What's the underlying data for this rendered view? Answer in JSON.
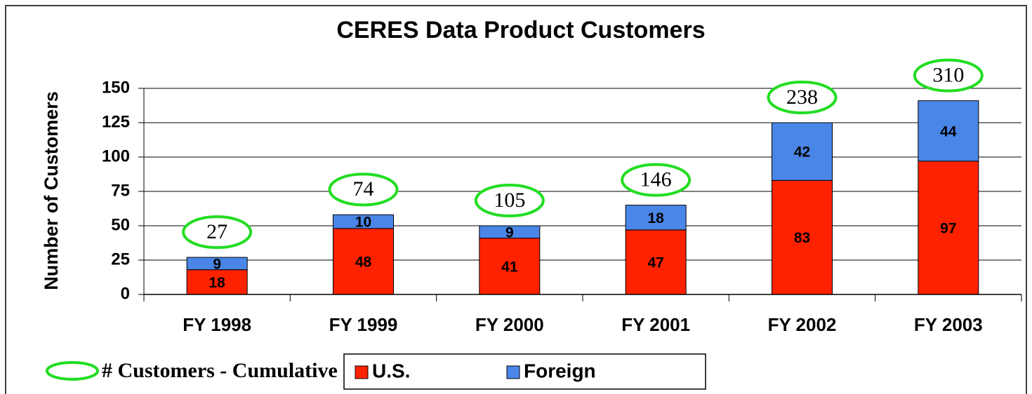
{
  "chart_data": {
    "type": "stacked_bar",
    "title": "CERES Data Product Customers",
    "y_label": "Number of Customers",
    "categories": [
      "FY 1998",
      "FY 1999",
      "FY 2000",
      "FY 2001",
      "FY 2002",
      "FY 2003"
    ],
    "series": [
      {
        "name": "U.S.",
        "color": "#ff2200",
        "values": [
          18,
          48,
          41,
          47,
          83,
          97
        ]
      },
      {
        "name": "Foreign",
        "color": "#4a86e8",
        "values": [
          9,
          10,
          9,
          18,
          42,
          44
        ]
      }
    ],
    "cumulative": {
      "name": "# Customers - Cumulative",
      "color": "#22dd22",
      "values": [
        27,
        74,
        105,
        146,
        238,
        310
      ]
    },
    "ylim": [
      0,
      150
    ],
    "yticks": [
      0,
      25,
      50,
      75,
      100,
      125,
      150
    ],
    "grid": true
  }
}
